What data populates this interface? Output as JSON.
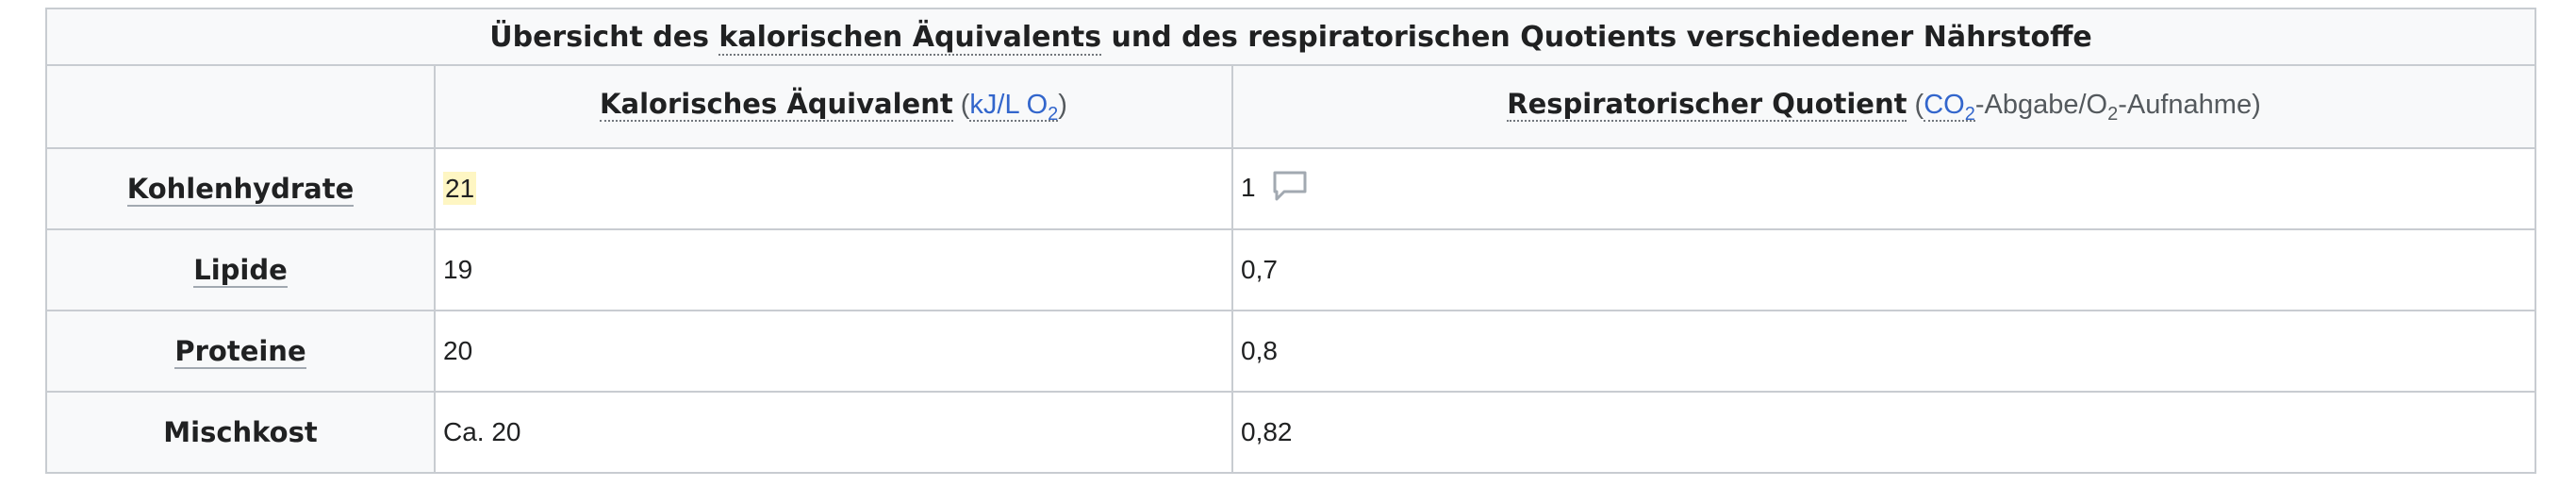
{
  "table": {
    "caption": "Übersicht des kalorischen Äquivalents und des respiratorischen Quotients verschiedener Nährstoffe",
    "caption_parts": {
      "prefix": "Übersicht des ",
      "link1": "kalorischen Äquivalents",
      "middle": " und des respiratorischen Quotients verschiedener Nährstoffe"
    },
    "columns": {
      "col2_label": "Kalorisches Äquivalent",
      "col2_unit_open": " (",
      "col2_unit_abbr": "kJ/L O",
      "col2_unit_sub": "2",
      "col2_unit_close": ")",
      "col3_label": "Respiratorischer Quotient",
      "col3_unit_open": " (",
      "col3_unit_abbr": "CO",
      "col3_unit_sub1": "2",
      "col3_unit_mid": "-Abgabe/O",
      "col3_unit_sub2": "2",
      "col3_unit_end": "-Aufnahme)"
    },
    "rows": [
      {
        "label": "Kohlenhydrate",
        "kalorisch": "21",
        "rq": "1",
        "label_link": true
      },
      {
        "label": "Lipide",
        "kalorisch": "19",
        "rq": "0,7",
        "label_link": true
      },
      {
        "label": "Proteine",
        "kalorisch": "20",
        "rq": "0,8",
        "label_link": true
      },
      {
        "label": "Mischkost",
        "kalorisch": "Ca. 20",
        "rq": "0,82",
        "label_link": false
      }
    ]
  },
  "icons": {
    "comment": "speech-bubble-icon"
  },
  "colors": {
    "header_bg": "#f8f9fa",
    "border": "#c8ccd1",
    "highlight": "#fef6c3",
    "icon": "#a2a9b1"
  }
}
